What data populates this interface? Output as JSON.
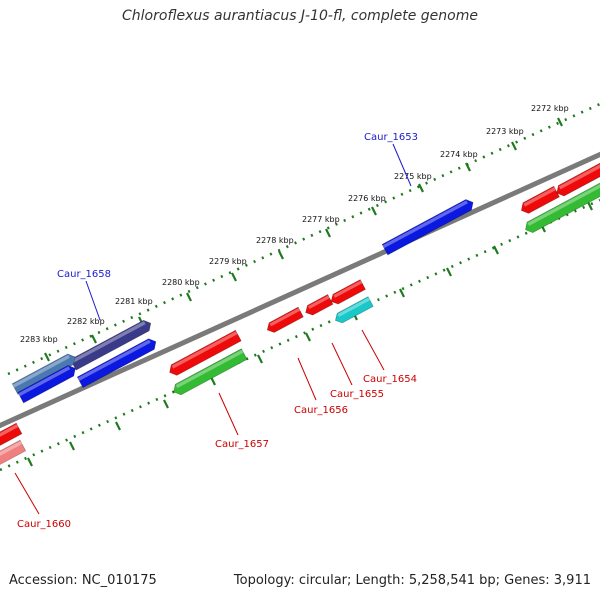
{
  "title": "Chloroflexus aurantiacus J-10-fl, complete genome",
  "footer": {
    "accession": "Accession: NC_010175",
    "summary": "Topology: circular; Length: 5,258,541 bp; Genes: 3,911"
  },
  "colors": {
    "backbone": "#7a7a7a",
    "ticks": "#1f7a1f",
    "label_forward": "#1a1acc",
    "label_reverse": "#cc0000",
    "gene_blue": "#0a18e0",
    "gene_slate": "#3a3a8a",
    "gene_steel": "#4a78b0",
    "gene_red": "#ee0a0a",
    "gene_green": "#33bb33",
    "gene_cyan": "#19c8c8",
    "gene_pink": "#f08080"
  },
  "outer_ticks": [
    "2272 kbp",
    "2273 kbp",
    "2274 kbp",
    "2275 kbp",
    "2276 kbp",
    "2277 kbp",
    "2278 kbp",
    "2279 kbp",
    "2280 kbp",
    "2281 kbp",
    "2282 kbp",
    "2283 kbp"
  ],
  "gene_labels": [
    {
      "text": "Caur_1653",
      "strand": "forward"
    },
    {
      "text": "Caur_1658",
      "strand": "forward"
    },
    {
      "text": "Caur_1654",
      "strand": "reverse"
    },
    {
      "text": "Caur_1655",
      "strand": "reverse"
    },
    {
      "text": "Caur_1656",
      "strand": "reverse"
    },
    {
      "text": "Caur_1657",
      "strand": "reverse"
    },
    {
      "text": "Caur_1660",
      "strand": "reverse"
    }
  ]
}
